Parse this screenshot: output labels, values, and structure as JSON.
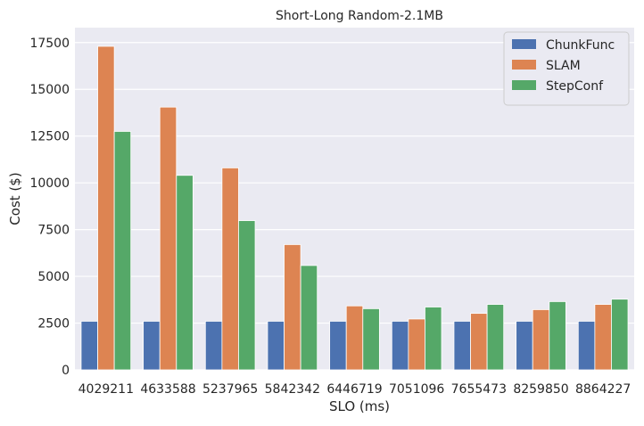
{
  "chart_data": {
    "type": "bar",
    "title": "Short-Long Random-2.1MB",
    "xlabel": "SLO (ms)",
    "ylabel": "Cost ($)",
    "categories": [
      "4029211",
      "4633588",
      "5237965",
      "5842342",
      "6446719",
      "7051096",
      "7655473",
      "8259850",
      "8864227"
    ],
    "ylim": [
      0,
      18300
    ],
    "yticks": [
      0,
      2500,
      5000,
      7500,
      10000,
      12500,
      15000,
      17500
    ],
    "grid": true,
    "legend_position": "top-right",
    "background": "#eaeaf2",
    "series": [
      {
        "name": "ChunkFunc",
        "color": "#4c72b0",
        "values": [
          2600,
          2600,
          2600,
          2600,
          2600,
          2600,
          2600,
          2600,
          2600
        ]
      },
      {
        "name": "SLAM",
        "color": "#dd8452",
        "values": [
          17300,
          14050,
          10800,
          6700,
          3420,
          2720,
          3020,
          3220,
          3500
        ]
      },
      {
        "name": "StepConf",
        "color": "#55a868",
        "values": [
          12750,
          10400,
          7980,
          5580,
          3270,
          3360,
          3500,
          3650,
          3780
        ]
      }
    ]
  }
}
